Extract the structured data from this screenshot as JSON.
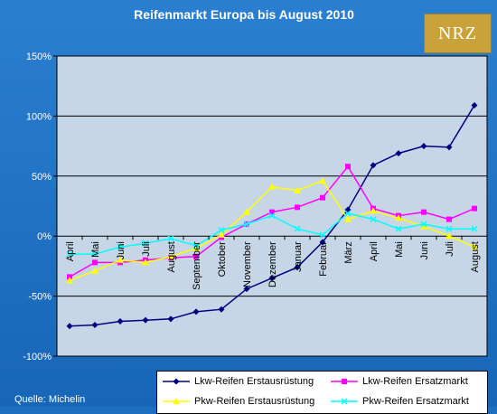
{
  "title": "Reifenmarkt Europa bis August 2010",
  "logo_text": "NRZ",
  "source": "Quelle: Michelin",
  "chart_data": {
    "type": "line",
    "title": "Reifenmarkt Europa bis August 2010",
    "categories": [
      "April",
      "Mai",
      "Juni",
      "Juli",
      "August",
      "September",
      "Oktober",
      "November",
      "Dezember",
      "Januar",
      "Februar",
      "März",
      "April",
      "Mai",
      "Juni",
      "Juli",
      "August"
    ],
    "y_ticks": [
      "150%",
      "100%",
      "50%",
      "0%",
      "-50%",
      "-100%"
    ],
    "ylim": [
      -100,
      150
    ],
    "grid": true,
    "legend_position": "bottom-right",
    "series": [
      {
        "name": "Lkw-Reifen Erstausrüstung",
        "color": "#000080",
        "marker": "diamond",
        "values": [
          -75,
          -74,
          -71,
          -70,
          -69,
          -63,
          -61,
          -44,
          -35,
          -26,
          -5,
          22,
          59,
          69,
          75,
          74,
          109
        ]
      },
      {
        "name": "Lkw-Reifen Ersatzmarkt",
        "color": "#ff00ff",
        "marker": "square",
        "values": [
          -34,
          -22,
          -22,
          -20,
          -18,
          -17,
          -1,
          10,
          20,
          24,
          32,
          58,
          23,
          17,
          20,
          14,
          23
        ]
      },
      {
        "name": "Pkw-Reifen Erstausrüstung",
        "color": "#ffff00",
        "marker": "triangle",
        "values": [
          -37,
          -29,
          -20,
          -22,
          -17,
          -10,
          1,
          20,
          41,
          38,
          46,
          14,
          21,
          15,
          8,
          0,
          -9
        ]
      },
      {
        "name": "Pkw-Reifen Ersatzmarkt",
        "color": "#00ffff",
        "marker": "x",
        "values": [
          -15,
          -15,
          -9,
          -6,
          -2,
          -8,
          5,
          10,
          17,
          6,
          1,
          19,
          14,
          6,
          10,
          6,
          6
        ]
      }
    ]
  }
}
